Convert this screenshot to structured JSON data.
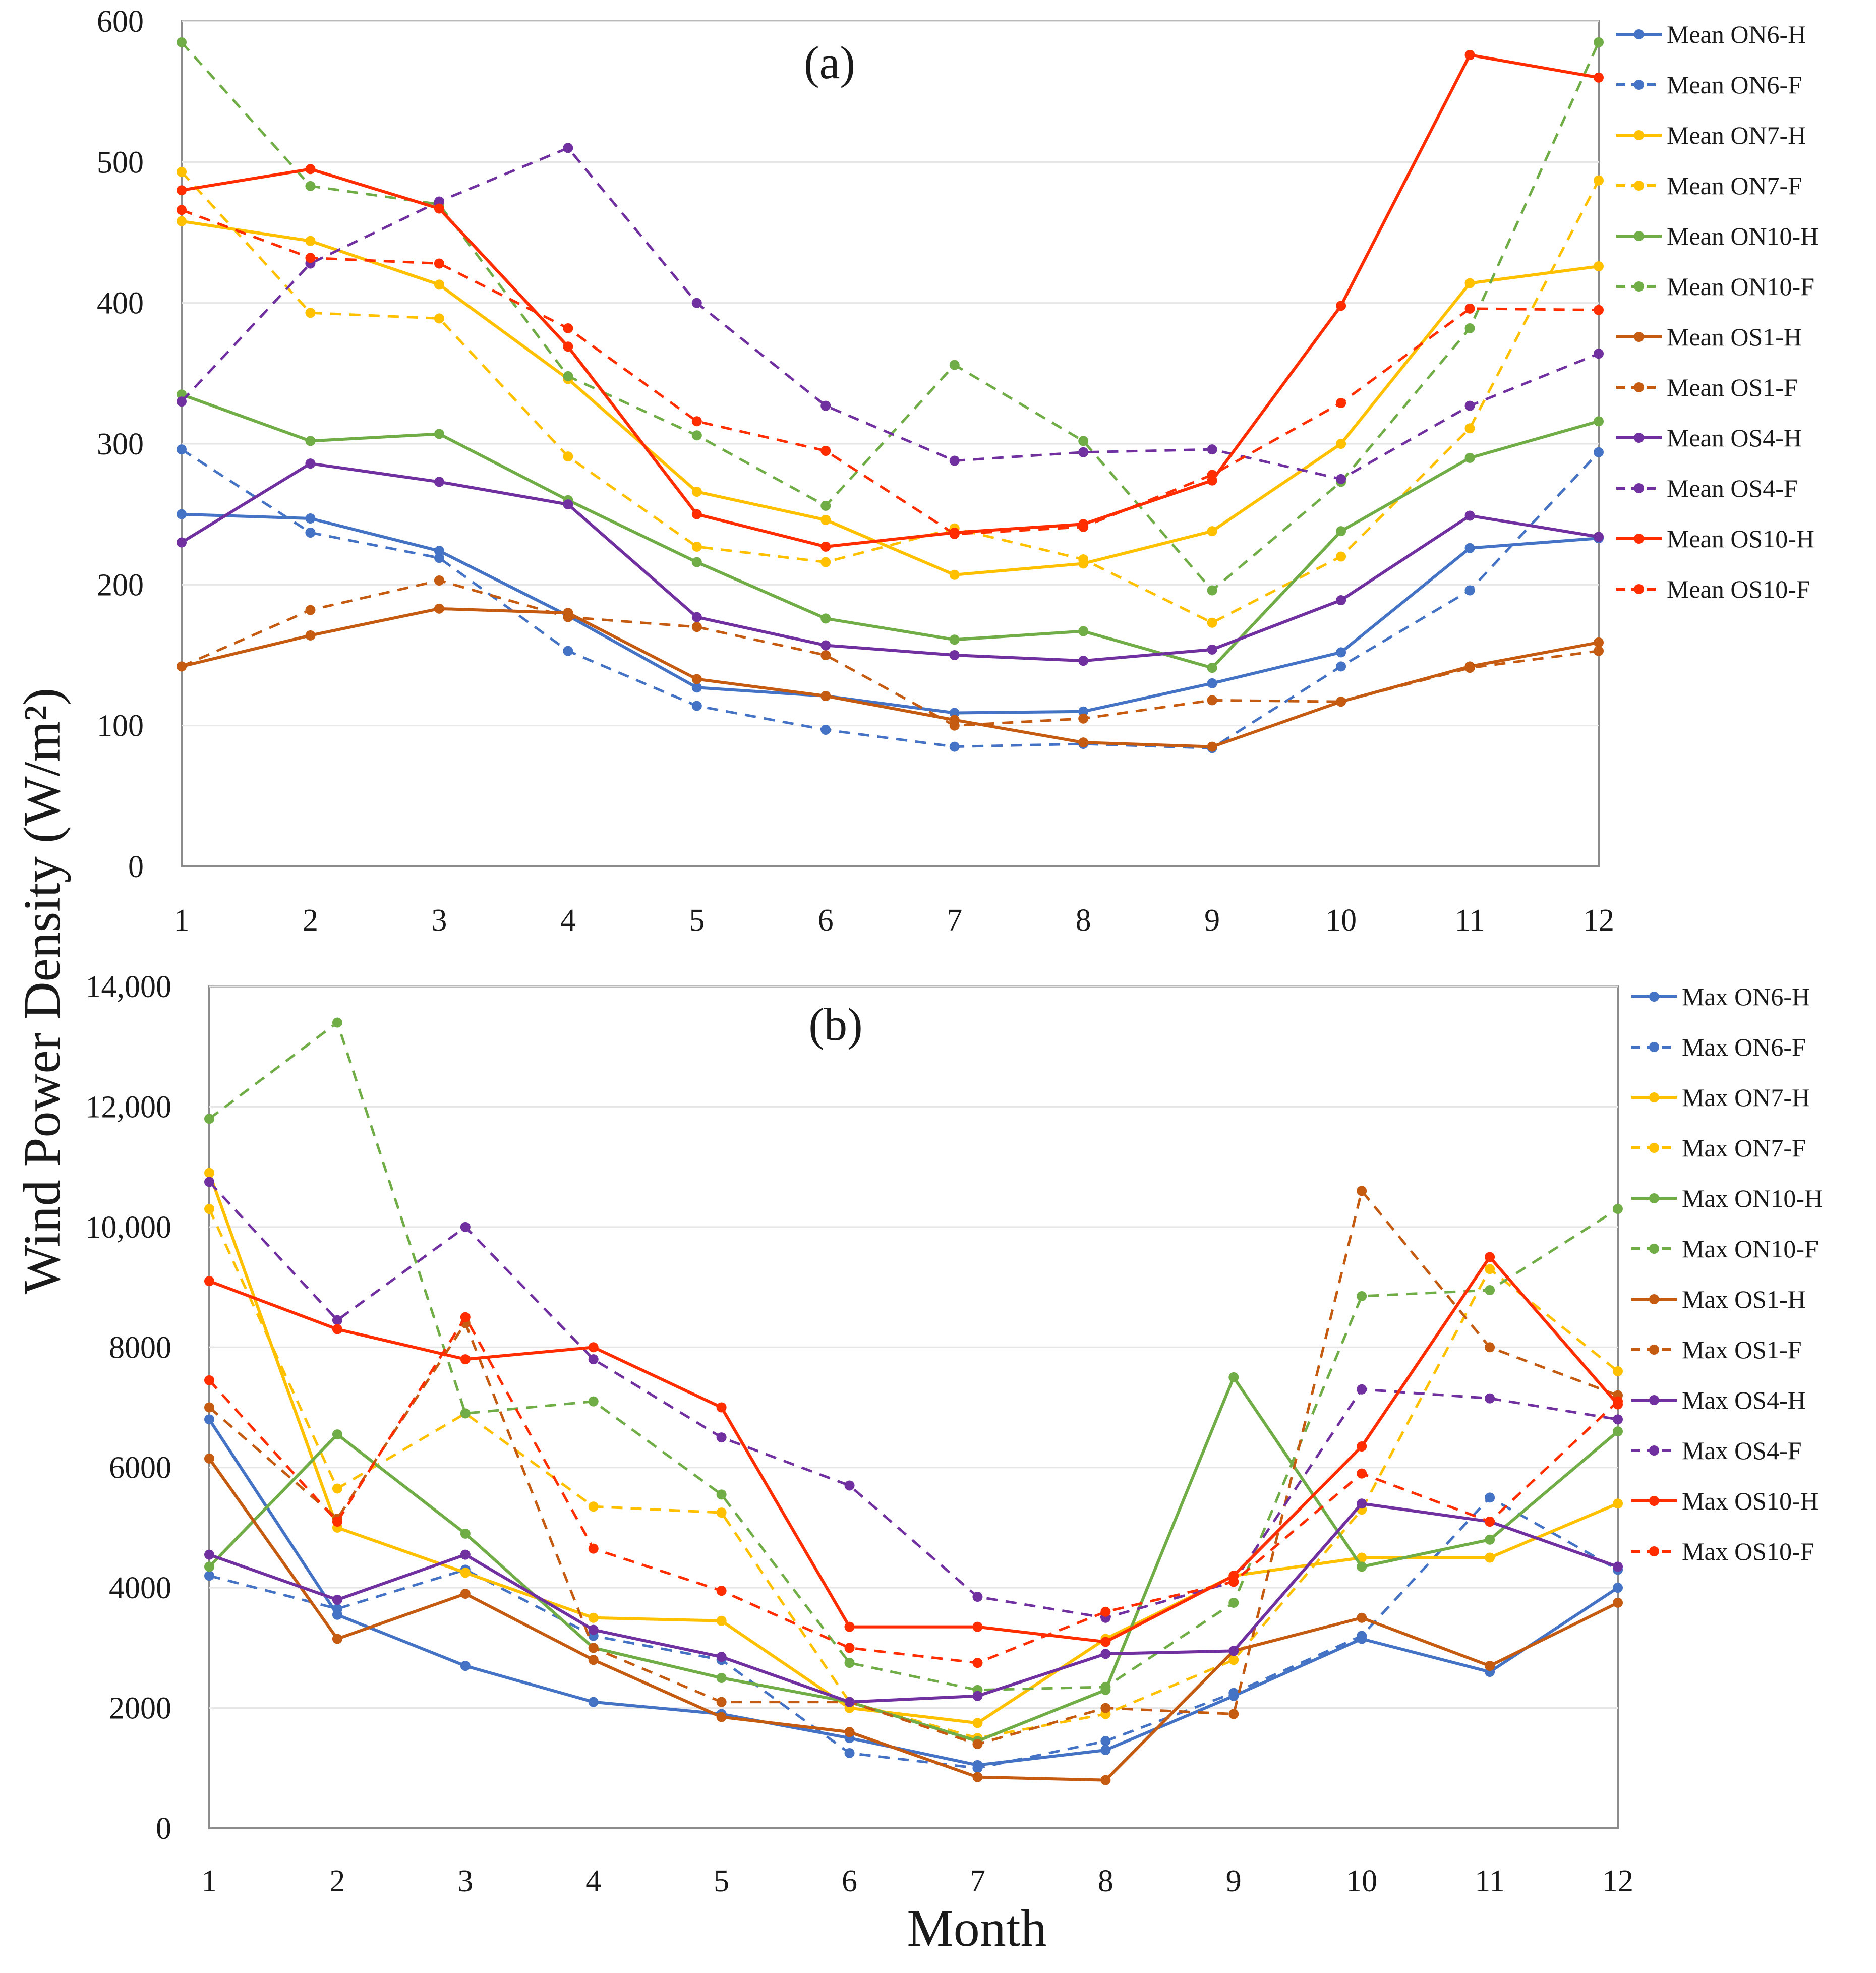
{
  "figure": {
    "ylabel": "Wind Power Density (W/m²)",
    "xlabel": "Month"
  },
  "chart_data": [
    {
      "type": "line",
      "panel_label": "(a)",
      "title": "",
      "xlabel": "",
      "ylabel": "Wind Power Density (W/m²)",
      "x": [
        1,
        2,
        3,
        4,
        5,
        6,
        7,
        8,
        9,
        10,
        11,
        12
      ],
      "xticks": [
        "1",
        "2",
        "3",
        "4",
        "5",
        "6",
        "7",
        "8",
        "9",
        "10",
        "11",
        "12"
      ],
      "ylim": [
        0,
        600
      ],
      "yticks": [
        0,
        100,
        200,
        300,
        400,
        500,
        600
      ],
      "ytick_labels": [
        "0",
        "100",
        "200",
        "300",
        "400",
        "500",
        "600"
      ],
      "grid": true,
      "legend_position": "right",
      "series": [
        {
          "name": "Mean ON6-H",
          "color": "#4472c4",
          "style": "solid",
          "values": [
            250,
            247,
            224,
            178,
            127,
            121,
            109,
            110,
            130,
            152,
            226,
            233
          ]
        },
        {
          "name": "Mean ON6-F",
          "color": "#4472c4",
          "style": "dashed",
          "values": [
            296,
            237,
            219,
            153,
            114,
            97,
            85,
            87,
            84,
            142,
            196,
            294
          ]
        },
        {
          "name": "Mean ON7-H",
          "color": "#ffc000",
          "style": "solid",
          "values": [
            458,
            444,
            413,
            346,
            266,
            246,
            207,
            215,
            238,
            300,
            414,
            426
          ]
        },
        {
          "name": "Mean ON7-F",
          "color": "#ffc000",
          "style": "dashed",
          "values": [
            493,
            393,
            389,
            291,
            227,
            216,
            240,
            218,
            173,
            220,
            311,
            487
          ]
        },
        {
          "name": "Mean ON10-H",
          "color": "#70ad47",
          "style": "solid",
          "values": [
            335,
            302,
            307,
            260,
            216,
            176,
            161,
            167,
            141,
            238,
            290,
            316
          ]
        },
        {
          "name": "Mean ON10-F",
          "color": "#70ad47",
          "style": "dashed",
          "values": [
            585,
            483,
            470,
            348,
            306,
            256,
            356,
            302,
            196,
            273,
            382,
            585
          ]
        },
        {
          "name": "Mean OS1-H",
          "color": "#c55a11",
          "style": "solid",
          "values": [
            142,
            164,
            183,
            180,
            133,
            121,
            104,
            88,
            85,
            117,
            142,
            159
          ]
        },
        {
          "name": "Mean OS1-F",
          "color": "#c55a11",
          "style": "dashed",
          "values": [
            142,
            182,
            203,
            177,
            170,
            150,
            100,
            105,
            118,
            117,
            141,
            153
          ]
        },
        {
          "name": "Mean OS4-H",
          "color": "#7030a0",
          "style": "solid",
          "values": [
            230,
            286,
            273,
            257,
            177,
            157,
            150,
            146,
            154,
            189,
            249,
            234
          ]
        },
        {
          "name": "Mean OS4-F",
          "color": "#7030a0",
          "style": "dashed",
          "values": [
            330,
            428,
            472,
            510,
            400,
            327,
            288,
            294,
            296,
            275,
            327,
            364
          ]
        },
        {
          "name": "Mean OS10-H",
          "color": "#ff2d00",
          "style": "solid",
          "values": [
            480,
            495,
            467,
            369,
            250,
            227,
            237,
            243,
            274,
            398,
            576,
            560
          ]
        },
        {
          "name": "Mean OS10-F",
          "color": "#ff2d00",
          "style": "dashed",
          "values": [
            466,
            432,
            428,
            382,
            316,
            295,
            236,
            241,
            278,
            329,
            396,
            395
          ]
        }
      ]
    },
    {
      "type": "line",
      "panel_label": "(b)",
      "title": "",
      "xlabel": "Month",
      "ylabel": "Wind Power Density (W/m²)",
      "x": [
        1,
        2,
        3,
        4,
        5,
        6,
        7,
        8,
        9,
        10,
        11,
        12
      ],
      "xticks": [
        "1",
        "2",
        "3",
        "4",
        "5",
        "6",
        "7",
        "8",
        "9",
        "10",
        "11",
        "12"
      ],
      "ylim": [
        0,
        14000
      ],
      "yticks": [
        0,
        2000,
        4000,
        6000,
        8000,
        10000,
        12000,
        14000
      ],
      "ytick_labels": [
        "0",
        "2000",
        "4000",
        "6000",
        "8000",
        "10,000",
        "12,000",
        "14,000"
      ],
      "grid": true,
      "legend_position": "right",
      "series": [
        {
          "name": "Max ON6-H",
          "color": "#4472c4",
          "style": "solid",
          "values": [
            6800,
            3550,
            2700,
            2100,
            1900,
            1500,
            1050,
            1300,
            2200,
            3150,
            2600,
            4000
          ]
        },
        {
          "name": "Max ON6-F",
          "color": "#4472c4",
          "style": "dashed",
          "values": [
            4200,
            3650,
            4300,
            3200,
            2800,
            1250,
            1000,
            1450,
            2250,
            3200,
            5500,
            4300
          ]
        },
        {
          "name": "Max ON7-H",
          "color": "#ffc000",
          "style": "solid",
          "values": [
            10900,
            5000,
            4250,
            3500,
            3450,
            2000,
            1750,
            3150,
            4200,
            4500,
            4500,
            5400
          ]
        },
        {
          "name": "Max ON7-F",
          "color": "#ffc000",
          "style": "dashed",
          "values": [
            10300,
            5650,
            6900,
            5350,
            5250,
            2100,
            1500,
            1900,
            2800,
            5300,
            9300,
            7600
          ]
        },
        {
          "name": "Max ON10-H",
          "color": "#70ad47",
          "style": "solid",
          "values": [
            4350,
            6550,
            4900,
            3000,
            2500,
            2100,
            1450,
            2300,
            7500,
            4350,
            4800,
            6600
          ]
        },
        {
          "name": "Max ON10-F",
          "color": "#70ad47",
          "style": "dashed",
          "values": [
            11800,
            13400,
            6900,
            7100,
            5550,
            2750,
            2300,
            2350,
            3750,
            8850,
            8950,
            10300
          ]
        },
        {
          "name": "Max OS1-H",
          "color": "#c55a11",
          "style": "solid",
          "values": [
            6150,
            3150,
            3900,
            2800,
            1850,
            1600,
            850,
            800,
            2950,
            3500,
            2700,
            3750
          ]
        },
        {
          "name": "Max OS1-F",
          "color": "#c55a11",
          "style": "dashed",
          "values": [
            7000,
            5150,
            8400,
            3000,
            2100,
            2100,
            1400,
            2000,
            1900,
            10600,
            8000,
            7200
          ]
        },
        {
          "name": "Max OS4-H",
          "color": "#7030a0",
          "style": "solid",
          "values": [
            4550,
            3800,
            4550,
            3300,
            2850,
            2100,
            2200,
            2900,
            2950,
            5400,
            5100,
            4350
          ]
        },
        {
          "name": "Max OS4-F",
          "color": "#7030a0",
          "style": "dashed",
          "values": [
            10750,
            8450,
            10000,
            7800,
            6500,
            5700,
            3850,
            3500,
            4100,
            7300,
            7150,
            6800
          ]
        },
        {
          "name": "Max OS10-H",
          "color": "#ff2d00",
          "style": "solid",
          "values": [
            9100,
            8300,
            7800,
            8000,
            7000,
            3350,
            3350,
            3100,
            4200,
            6350,
            9500,
            7050
          ]
        },
        {
          "name": "Max OS10-F",
          "color": "#ff2d00",
          "style": "dashed",
          "values": [
            7450,
            5100,
            8500,
            4650,
            3950,
            3000,
            2750,
            3600,
            4100,
            5900,
            5100,
            7100
          ]
        }
      ]
    }
  ]
}
